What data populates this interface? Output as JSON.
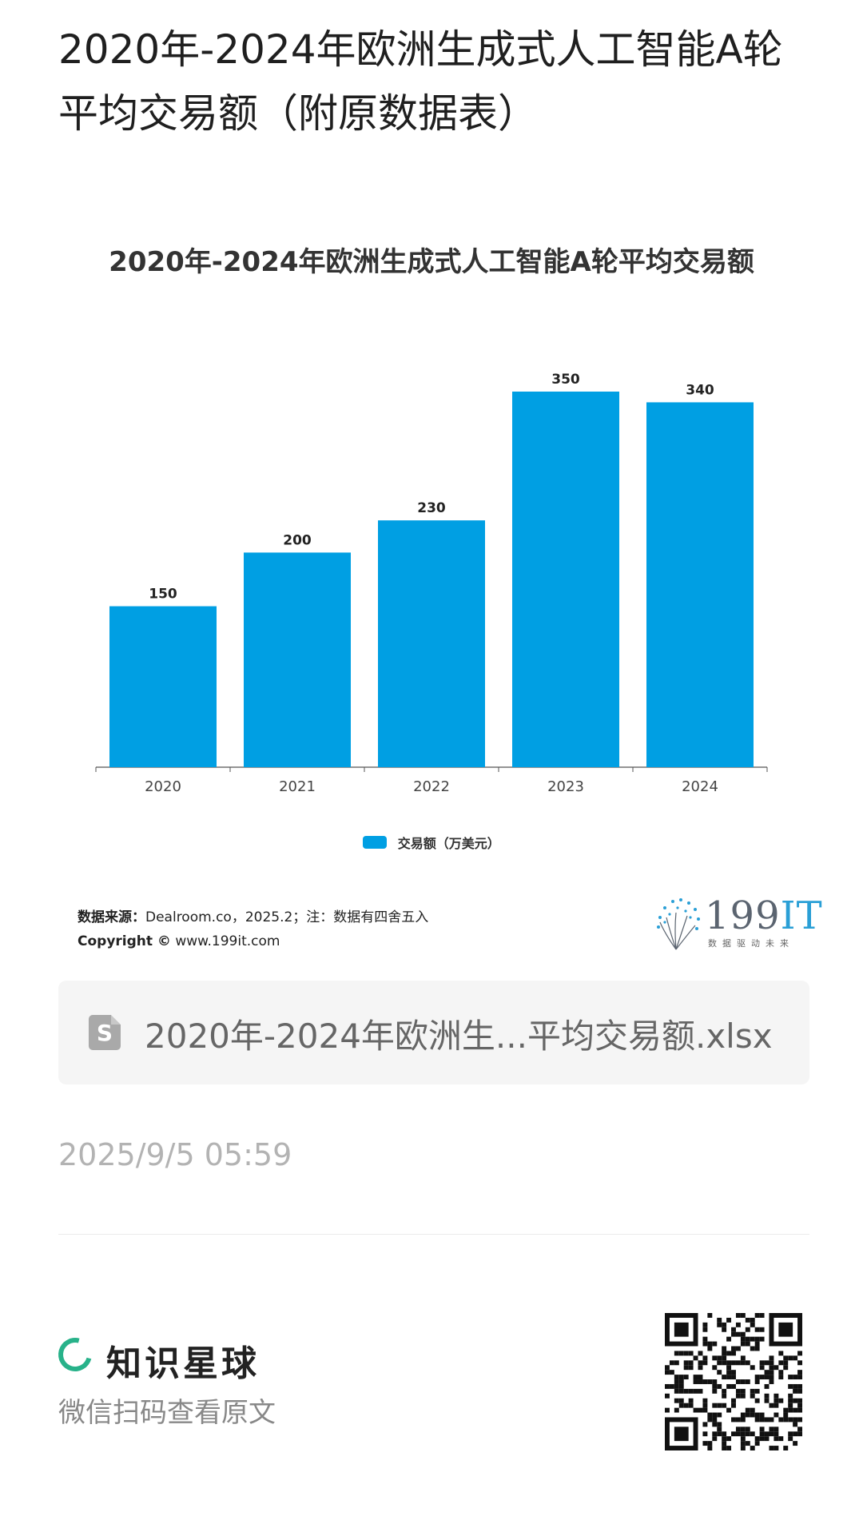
{
  "page": {
    "title": "2020年-2024年欧洲生成式人工智能A轮平均交易额（附原数据表）"
  },
  "chart_data": {
    "type": "bar",
    "title": "2020年-2024年欧洲生成式人工智能A轮平均交易额",
    "categories": [
      "2020",
      "2021",
      "2022",
      "2023",
      "2024"
    ],
    "series": [
      {
        "name": "交易额（万美元）",
        "values": [
          150,
          200,
          230,
          350,
          340
        ]
      }
    ],
    "ylim": [
      0,
      350
    ],
    "grid": false,
    "legend": "bottom",
    "bar_color": "#009fe3",
    "data_labels": [
      "150",
      "200",
      "230",
      "350",
      "340"
    ]
  },
  "chart_footer": {
    "source_label": "数据来源：",
    "source_text": "Dealroom.co，2025.2；注：数据有四舍五入",
    "copyright_label": "Copyright ©",
    "copyright_text": "www.199it.com",
    "logo_main": "199",
    "logo_it": "IT",
    "logo_tagline": "数据驱动未来"
  },
  "attachment": {
    "icon": "spreadsheet-file-icon",
    "icon_letter": "S",
    "file_name": "2020年-2024年欧洲生...平均交易额.xlsx"
  },
  "meta": {
    "timestamp": "2025/9/5 05:59"
  },
  "footer": {
    "brand_name": "知识星球",
    "brand_icon": "zsxq-ring-icon",
    "brand_color": "#28b28a",
    "scan_hint": "微信扫码查看原文",
    "qr_icon": "qr-code-icon"
  }
}
